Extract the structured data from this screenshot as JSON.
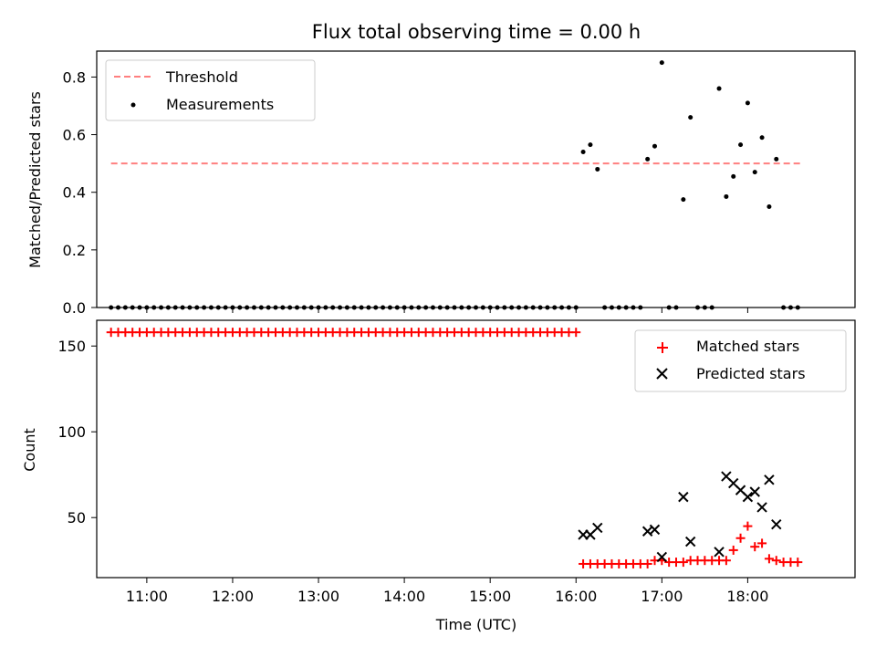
{
  "chart_data": [
    {
      "type": "scatter",
      "title": "Flux total observing time = 0.00 h",
      "xlabel": "",
      "ylabel": "Matched/Predicted stars",
      "xlim": [
        "10:25",
        "19:15"
      ],
      "ylim": [
        0,
        0.89
      ],
      "yticks": [
        0.0,
        0.2,
        0.4,
        0.6,
        0.8
      ],
      "legend_position": "top-left",
      "threshold": {
        "name": "Threshold",
        "x": [
          "10:35",
          "18:37"
        ],
        "y": 0.5,
        "color": "#ff7f7f",
        "style": "dashed"
      },
      "series": [
        {
          "name": "Measurements",
          "color": "#000000",
          "zero_points": {
            "x_start": "10:35",
            "x_end": "16:00",
            "step_minutes": 5,
            "extra_x": [
              "16:20",
              "16:25",
              "16:30",
              "16:35",
              "16:40",
              "16:45",
              "17:05",
              "17:10",
              "17:25",
              "17:30",
              "17:35",
              "18:25",
              "18:30",
              "18:35"
            ],
            "y": 0
          },
          "x": [
            "16:05",
            "16:10",
            "16:15",
            "16:50",
            "16:55",
            "17:00",
            "17:15",
            "17:20",
            "17:40",
            "17:45",
            "17:50",
            "17:55",
            "18:00",
            "18:05",
            "18:10",
            "18:15",
            "18:20"
          ],
          "y": [
            0.54,
            0.565,
            0.48,
            0.515,
            0.56,
            0.85,
            0.375,
            0.66,
            0.76,
            0.385,
            0.455,
            0.565,
            0.71,
            0.47,
            0.59,
            0.35,
            0.515
          ]
        }
      ]
    },
    {
      "type": "scatter",
      "title": "",
      "xlabel": "Time (UTC)",
      "ylabel": "Count",
      "xlim": [
        "10:25",
        "19:15"
      ],
      "ylim": [
        15,
        165
      ],
      "yticks": [
        50,
        100,
        150
      ],
      "xticks": [
        "11:00",
        "12:00",
        "13:00",
        "14:00",
        "15:00",
        "16:00",
        "17:00",
        "18:00"
      ],
      "legend_position": "top-right",
      "series": [
        {
          "name": "Matched stars",
          "marker": "plus",
          "color": "#ff0000",
          "constant_run": {
            "x_start": "10:35",
            "x_end": "16:00",
            "step_minutes": 5,
            "y": 158
          },
          "x": [
            "16:05",
            "16:10",
            "16:15",
            "16:20",
            "16:25",
            "16:30",
            "16:35",
            "16:40",
            "16:45",
            "16:50",
            "16:55",
            "17:00",
            "17:05",
            "17:10",
            "17:15",
            "17:20",
            "17:25",
            "17:30",
            "17:35",
            "17:40",
            "17:45",
            "17:50",
            "17:55",
            "18:00",
            "18:05",
            "18:10",
            "18:15",
            "18:20",
            "18:25",
            "18:30",
            "18:35"
          ],
          "y": [
            23,
            23,
            23,
            23,
            23,
            23,
            23,
            23,
            23,
            23,
            25,
            25,
            24,
            24,
            24,
            25,
            25,
            25,
            25,
            25,
            25,
            31,
            38,
            45,
            33,
            35,
            26,
            25,
            24,
            24,
            24
          ]
        },
        {
          "name": "Predicted stars",
          "marker": "x",
          "color": "#000000",
          "x": [
            "16:05",
            "16:10",
            "16:15",
            "16:50",
            "16:55",
            "17:00",
            "17:15",
            "17:20",
            "17:40",
            "17:45",
            "17:50",
            "17:55",
            "18:00",
            "18:05",
            "18:10",
            "18:15",
            "18:20"
          ],
          "y": [
            40,
            40,
            44,
            42,
            43,
            27,
            62,
            36,
            30,
            74,
            70,
            66,
            62,
            65,
            56,
            72,
            46
          ]
        }
      ]
    }
  ]
}
